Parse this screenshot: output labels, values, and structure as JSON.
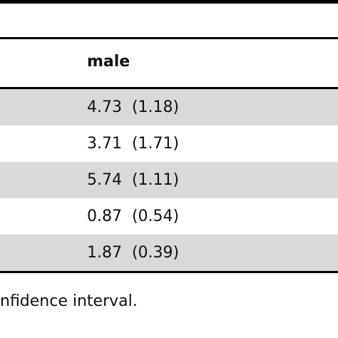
{
  "table": {
    "column_header": "male",
    "rows": [
      {
        "value": "4.73  (1.18)"
      },
      {
        "value": "3.71  (1.71)"
      },
      {
        "value": "5.74  (1.11)"
      },
      {
        "value": "0.87  (0.54)"
      },
      {
        "value": "1.87  (0.39)"
      }
    ]
  },
  "footnote": "nfidence interval."
}
